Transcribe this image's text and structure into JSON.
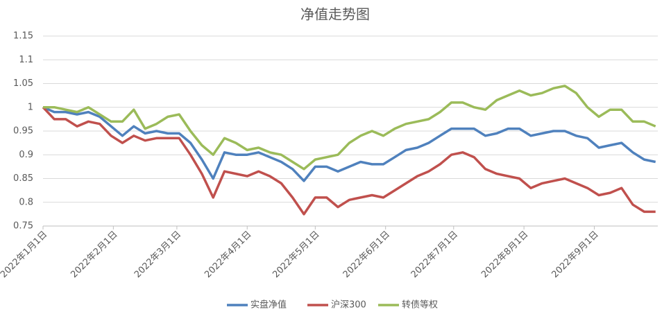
{
  "chart_data": {
    "type": "line",
    "title": "净值走势图",
    "x": [
      "2022-01-01",
      "2022-01-06",
      "2022-01-11",
      "2022-01-16",
      "2022-01-21",
      "2022-01-26",
      "2022-01-31",
      "2022-02-05",
      "2022-02-10",
      "2022-02-15",
      "2022-02-20",
      "2022-02-25",
      "2022-03-02",
      "2022-03-07",
      "2022-03-12",
      "2022-03-17",
      "2022-03-22",
      "2022-03-27",
      "2022-04-01",
      "2022-04-06",
      "2022-04-11",
      "2022-04-16",
      "2022-04-21",
      "2022-04-26",
      "2022-05-01",
      "2022-05-06",
      "2022-05-11",
      "2022-05-16",
      "2022-05-21",
      "2022-05-26",
      "2022-05-31",
      "2022-06-05",
      "2022-06-10",
      "2022-06-15",
      "2022-06-20",
      "2022-06-25",
      "2022-06-30",
      "2022-07-05",
      "2022-07-10",
      "2022-07-15",
      "2022-07-20",
      "2022-07-25",
      "2022-07-30",
      "2022-08-04",
      "2022-08-09",
      "2022-08-14",
      "2022-08-19",
      "2022-08-24",
      "2022-08-29",
      "2022-09-03",
      "2022-09-08",
      "2022-09-13",
      "2022-09-18",
      "2022-09-23",
      "2022-09-28"
    ],
    "series": [
      {
        "name": "实盘净值",
        "color": "#4f81bd",
        "values": [
          1.0,
          0.99,
          0.99,
          0.985,
          0.99,
          0.98,
          0.96,
          0.94,
          0.96,
          0.945,
          0.95,
          0.945,
          0.945,
          0.925,
          0.89,
          0.85,
          0.905,
          0.9,
          0.9,
          0.905,
          0.895,
          0.885,
          0.87,
          0.845,
          0.875,
          0.875,
          0.865,
          0.875,
          0.885,
          0.88,
          0.88,
          0.895,
          0.91,
          0.915,
          0.925,
          0.94,
          0.955,
          0.955,
          0.955,
          0.94,
          0.945,
          0.955,
          0.955,
          0.94,
          0.945,
          0.95,
          0.95,
          0.94,
          0.935,
          0.915,
          0.92,
          0.925,
          0.905,
          0.89,
          0.885
        ]
      },
      {
        "name": "沪深300",
        "color": "#c0504d",
        "values": [
          1.0,
          0.975,
          0.975,
          0.96,
          0.97,
          0.965,
          0.94,
          0.925,
          0.94,
          0.93,
          0.935,
          0.935,
          0.935,
          0.9,
          0.86,
          0.81,
          0.865,
          0.86,
          0.855,
          0.865,
          0.855,
          0.84,
          0.81,
          0.775,
          0.81,
          0.81,
          0.79,
          0.805,
          0.81,
          0.815,
          0.81,
          0.825,
          0.84,
          0.855,
          0.865,
          0.88,
          0.9,
          0.905,
          0.895,
          0.87,
          0.86,
          0.855,
          0.85,
          0.83,
          0.84,
          0.845,
          0.85,
          0.84,
          0.83,
          0.815,
          0.82,
          0.83,
          0.795,
          0.78,
          0.78
        ]
      },
      {
        "name": "转债等权",
        "color": "#9bbb59",
        "values": [
          1.0,
          1.0,
          0.995,
          0.99,
          1.0,
          0.985,
          0.97,
          0.97,
          0.995,
          0.955,
          0.965,
          0.98,
          0.985,
          0.95,
          0.92,
          0.9,
          0.935,
          0.925,
          0.91,
          0.915,
          0.905,
          0.9,
          0.885,
          0.87,
          0.89,
          0.895,
          0.9,
          0.925,
          0.94,
          0.95,
          0.94,
          0.955,
          0.965,
          0.97,
          0.975,
          0.99,
          1.01,
          1.01,
          1.0,
          0.995,
          1.015,
          1.025,
          1.035,
          1.025,
          1.03,
          1.04,
          1.045,
          1.03,
          1.0,
          0.98,
          0.995,
          0.995,
          0.97,
          0.97,
          0.96
        ]
      }
    ],
    "xlim": [
      "2022-01-01",
      "2022-09-29"
    ],
    "xticks": [
      {
        "value": "2022-01-01",
        "label": "2022年1月1日"
      },
      {
        "value": "2022-02-01",
        "label": "2022年2月1日"
      },
      {
        "value": "2022-03-01",
        "label": "2022年3月1日"
      },
      {
        "value": "2022-04-01",
        "label": "2022年4月1日"
      },
      {
        "value": "2022-05-01",
        "label": "2022年5月1日"
      },
      {
        "value": "2022-06-01",
        "label": "2022年6月1日"
      },
      {
        "value": "2022-07-01",
        "label": "2022年7月1日"
      },
      {
        "value": "2022-08-01",
        "label": "2022年8月1日"
      },
      {
        "value": "2022-09-01",
        "label": "2022年9月1日"
      }
    ],
    "ylim": [
      0.75,
      1.15
    ],
    "yticks": [
      0.75,
      0.8,
      0.85,
      0.9,
      0.95,
      1,
      1.05,
      1.1,
      1.15
    ],
    "grid": true,
    "legend": "bottom"
  }
}
